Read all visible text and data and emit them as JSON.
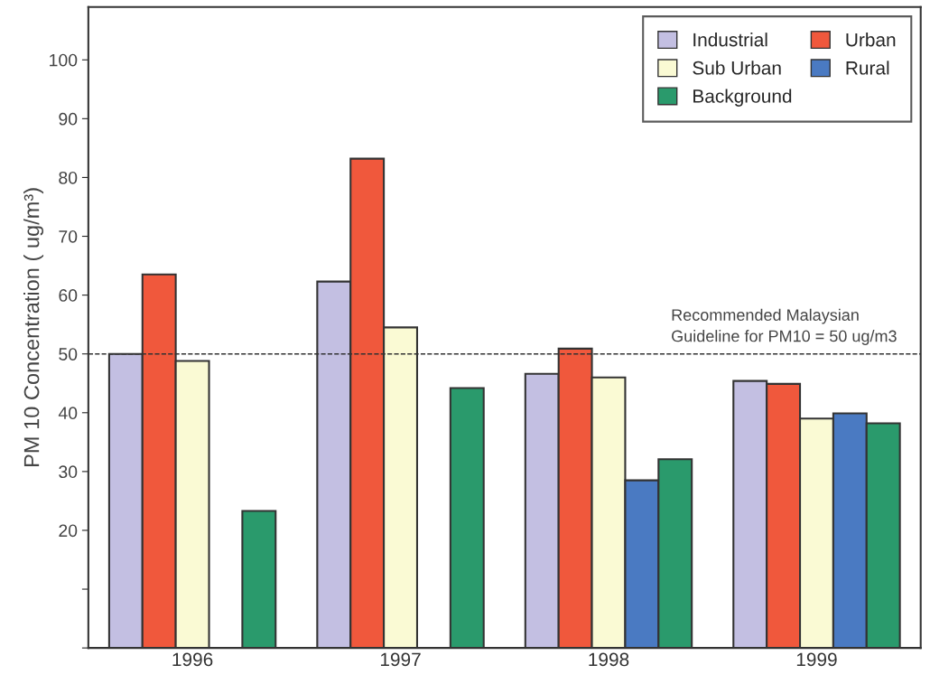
{
  "chart_data": {
    "type": "bar",
    "ylabel": "PM 10 Concentration ( ug/m³)",
    "categories": [
      "1996",
      "1997",
      "1998",
      "1999"
    ],
    "series": [
      {
        "name": "Industrial",
        "color": "#c3bfe2",
        "values": [
          50,
          62.3,
          46.6,
          45.4
        ]
      },
      {
        "name": "Urban",
        "color": "#f0583c",
        "values": [
          63.5,
          83.2,
          50.9,
          44.9
        ]
      },
      {
        "name": "Sub Urban",
        "color": "#fafad4",
        "values": [
          48.8,
          54.5,
          46.0,
          39.0
        ]
      },
      {
        "name": "Rural",
        "color": "#4a7ac2",
        "values": [
          null,
          null,
          28.5,
          39.9
        ]
      },
      {
        "name": "Background",
        "color": "#2a9a6c",
        "values": [
          23.3,
          44.2,
          32.1,
          38.2
        ]
      }
    ],
    "ylim": [
      0,
      109
    ],
    "yticks": [
      {
        "value": 0,
        "label": null
      },
      {
        "value": 10,
        "label": null
      },
      20,
      30,
      40,
      50,
      60,
      70,
      80,
      90,
      100
    ],
    "ref_lines": [
      {
        "axis": "y",
        "value": 50,
        "label": "Recommended Malaysian\nGuideline for PM10 = 50 ug/m3",
        "color": "#333333",
        "line_style": "dashed"
      }
    ],
    "legend": "top right",
    "grid": false
  }
}
